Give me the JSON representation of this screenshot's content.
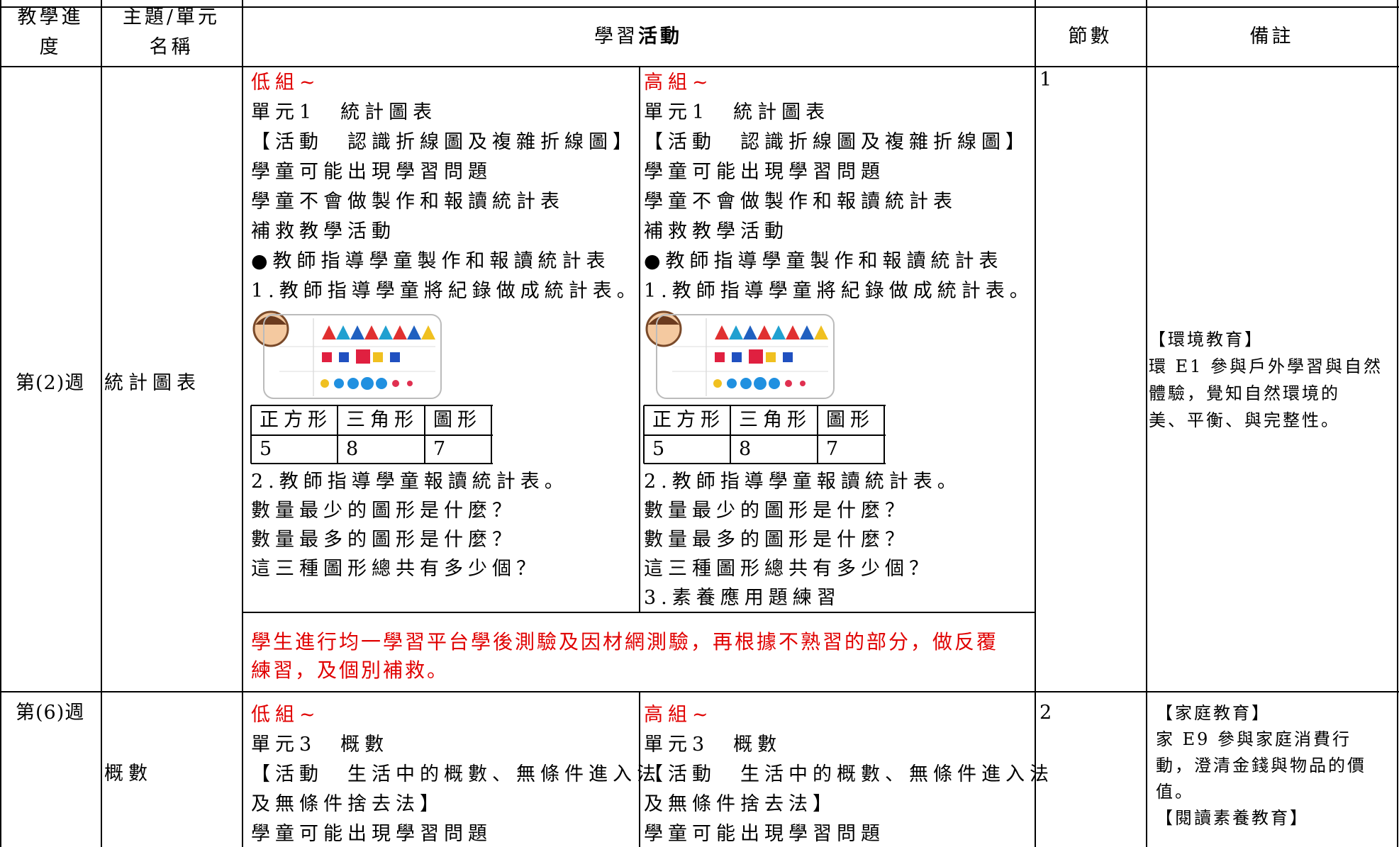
{
  "header": {
    "progress": "教學進度",
    "topic": "主題/單元名稱",
    "activity_plain": "學習",
    "activity_bold": "活動",
    "periods": "節數",
    "remarks": "備註"
  },
  "rows": [
    {
      "week": "第(2)週",
      "topic": "統計圖表",
      "low": {
        "label": "低組~",
        "lines": [
          "單元1　統計圖表",
          "【活動　認識折線圖及複雜折線圖】",
          "學童可能出現學習問題",
          "學童不會做製作和報讀統計表",
          "補救教學活動",
          "●教師指導學童製作和報讀統計表",
          "1.教師指導學童將紀錄做成統計表。"
        ],
        "table": {
          "header": [
            "正方形",
            "三角形",
            "圖形"
          ],
          "values": [
            5,
            8,
            7
          ]
        },
        "after": [
          "2.教師指導學童報讀統計表。",
          "數量最少的圖形是什麼？",
          "數量最多的圖形是什麼？",
          "這三種圖形總共有多少個？"
        ]
      },
      "high": {
        "label": "高組~",
        "lines": [
          "單元1　統計圖表",
          "【活動　認識折線圖及複雜折線圖】",
          "學童可能出現學習問題",
          "學童不會做製作和報讀統計表",
          "補救教學活動",
          "●教師指導學童製作和報讀統計表",
          "1.教師指導學童將紀錄做成統計表。"
        ],
        "table": {
          "header": [
            "正方形",
            "三角形",
            "圖形"
          ],
          "values": [
            5,
            8,
            7
          ]
        },
        "after": [
          "2.教師指導學童報讀統計表。",
          "數量最少的圖形是什麼？",
          "數量最多的圖形是什麼？",
          "這三種圖形總共有多少個？",
          "3.素養應用題練習"
        ]
      },
      "note": [
        "學生進行均一學習平台學後測驗及因材網測驗，再根據不熟習的部分，做反覆",
        "練習，及個別補救。"
      ],
      "periods": "1",
      "remarks": [
        "【環境教育】",
        "環 E1 參與戶外學習與自然",
        "體驗，覺知自然環境的",
        "美、平衡、與完整性。"
      ]
    },
    {
      "week": "第(6)週",
      "topic": "概數",
      "low": {
        "label": "低組~",
        "lines": [
          "單元3　概數",
          "【活動　生活中的概數、無條件進入法",
          "及無條件捨去法】",
          "學童可能出現學習問題"
        ]
      },
      "high": {
        "label": "高組~",
        "lines": [
          "單元3　概數",
          "【活動　生活中的概數、無條件進入法",
          "及無條件捨去法】",
          "學童可能出現學習問題"
        ]
      },
      "periods": "2",
      "remarks": [
        "【家庭教育】",
        "家 E9 參與家庭消費行",
        "動，澄清金錢與物品的價",
        "值。",
        "【閱讀素養教育】"
      ]
    }
  ]
}
